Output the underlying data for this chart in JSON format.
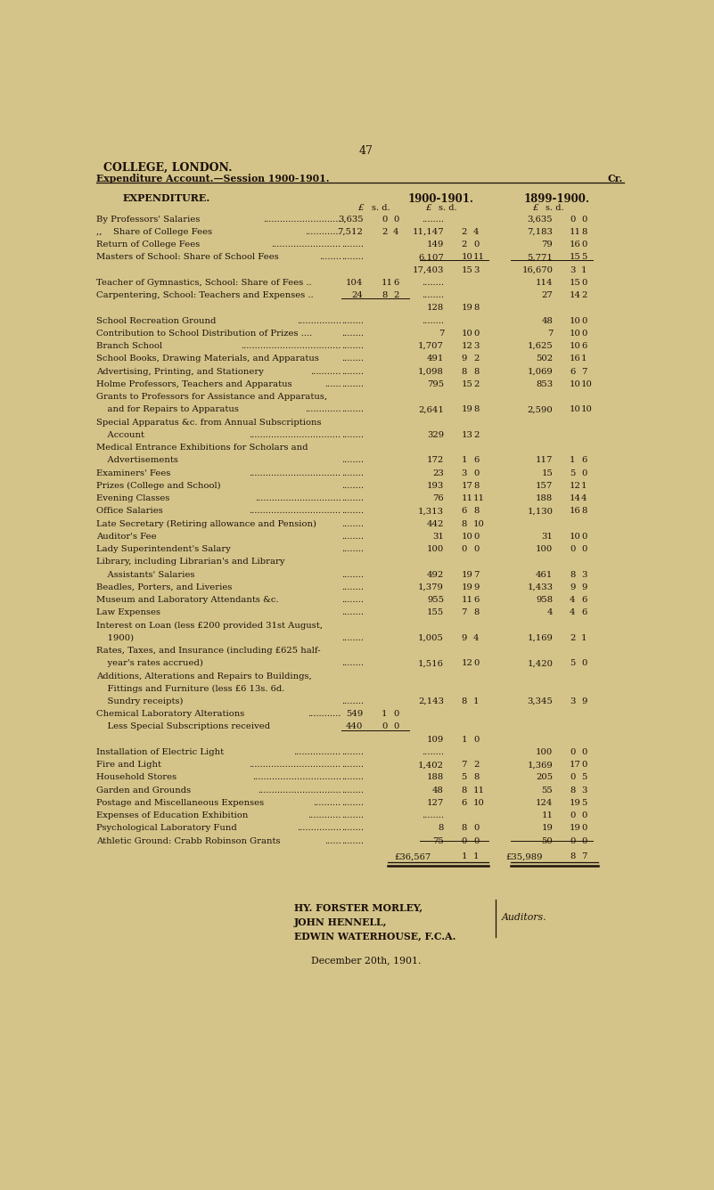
{
  "bg_color": "#d4c48a",
  "page_number": "47",
  "header1": "COLLEGE, LONDON.",
  "header2": "Expenditure Account.—Session 1900-1901.",
  "header2_right": "Cr.",
  "col_header": "EXPENDITURE.",
  "col_year1": "1900-1901.",
  "col_year2": "1899-1900.",
  "rows": [
    {
      "label": "By Professors' Salaries",
      "ldots": "............................",
      "sub1": "3,635  0  0",
      "sub2": "........",
      "main2": "3,635  0  0"
    },
    {
      "label": ",,    Share of College Fees",
      "ldots": ".............",
      "sub1": "7,512  2  4",
      "sub2": "11,147  2  4",
      "main2": "7,183 11  8"
    },
    {
      "label": "Return of College Fees",
      "ldots": ".........................",
      "sub1": "........",
      "sub2": "149  2  0",
      "main2": "79 16  0"
    },
    {
      "label": "Masters of School: Share of School Fees",
      "ldots": "........",
      "sub1": "........",
      "sub2": "6,107 10 11",
      "main2": "5,771 15  5"
    },
    {
      "label": "",
      "sub_total_1901": "17,403 15  3",
      "sub_total_1900": "16,670  3  1",
      "is_subtotal": true
    },
    {
      "label": "Teacher of Gymnastics, School: Share of Fees ..",
      "sub1": "104 11  6",
      "sub2": "........",
      "main2": "114 15  0"
    },
    {
      "label": "Carpentering, School: Teachers and Expenses ..",
      "sub1": "24  8  2",
      "sub2": ".........",
      "main2": "27 14  2"
    },
    {
      "label": "",
      "sub_total_1901": "128 19  8",
      "is_subtotal2": true
    },
    {
      "label": "School Recreation Ground",
      "ldots": "................",
      "sub1": "........",
      "sub2": ".........",
      "main2": "48 10  0"
    },
    {
      "label": "Contribution to School Distribution of Prizes ....",
      "sub1": "........",
      "sub2": "7 10  0",
      "main2": "7 10  0"
    },
    {
      "label": "Branch School",
      "ldots": "....................................",
      "sub1": "........",
      "sub2": "1,707 12  3",
      "main2": "1,625 10  6"
    },
    {
      "label": "School Books, Drawing Materials, and Apparatus",
      "sub1": "........",
      "sub2": "491  9  2",
      "main2": "502 16  1"
    },
    {
      "label": "Advertising, Printing, and Stationery",
      "ldots": "...........",
      "sub1": "........",
      "sub2": "1,098  8  8",
      "main2": "1,069  6  7"
    },
    {
      "label": "Holme Professors, Teachers and Apparatus",
      "ldots": "......",
      "sub1": "........",
      "sub2": "795 15  2",
      "main2": "853 10 10"
    },
    {
      "label": "Grants to Professors for Assistance and Apparatus,",
      "sub1": "",
      "sub2": "",
      "main2": ""
    },
    {
      "label": "    and for Repairs to Apparatus",
      "ldots": ".............",
      "sub1": "........",
      "sub2": "2,641 19  8",
      "main2": "2,590 10 10"
    },
    {
      "label": "Special Apparatus &c. from Annual Subscriptions",
      "sub1": "",
      "sub2": "",
      "main2": ""
    },
    {
      "label": "    Account",
      "ldots": ".................................",
      "sub1": "........",
      "sub2": "329 13  2",
      "main2": ""
    },
    {
      "label": "Medical Entrance Exhibitions for Scholars and",
      "sub1": "",
      "sub2": "",
      "main2": ""
    },
    {
      "label": "    Advertisements",
      "sub1": "........",
      "sub2": "172  1  6",
      "main2": "117  1  6"
    },
    {
      "label": "Examiners' Fees",
      "ldots": ".................................",
      "sub1": "........",
      "sub2": "23  3  0",
      "main2": "15  5  0"
    },
    {
      "label": "Prizes (College and School)",
      "sub1": "........",
      "sub2": "193 17  8",
      "main2": "157 12  1"
    },
    {
      "label": "Evening Classes",
      "ldots": "...............................",
      "sub1": "........",
      "sub2": "76 11 11",
      "main2": "188 14  4"
    },
    {
      "label": "Office Salaries",
      "ldots": ".................................",
      "sub1": "........",
      "sub2": "1,313  6  8",
      "main2": "1,130 16  8"
    },
    {
      "label": "Late Secretary (Retiring allowance and Pension)",
      "sub1": "........",
      "sub2": "442  8 10",
      "main2": ""
    },
    {
      "label": "Auditor's Fee",
      "sub1": "........",
      "sub2": "31 10  0",
      "main2": "31 10  0"
    },
    {
      "label": "Lady Superintendent's Salary",
      "sub1": "........",
      "sub2": "100  0  0",
      "main2": "100  0  0"
    },
    {
      "label": "Library, including Librarian's and Library",
      "sub1": "",
      "sub2": "",
      "main2": ""
    },
    {
      "label": "    Assistants' Salaries",
      "sub1": "........",
      "sub2": "492 19  7",
      "main2": "461  8  3"
    },
    {
      "label": "Beadles, Porters, and Liveries",
      "sub1": "........",
      "sub2": "1,379 19  9",
      "main2": "1,433  9  9"
    },
    {
      "label": "Museum and Laboratory Attendants &c.",
      "sub1": "........",
      "sub2": "955 11  6",
      "main2": "958  4  6"
    },
    {
      "label": "Law Expenses",
      "sub1": "........",
      "sub2": "155  7  8",
      "main2": "4  4  6"
    },
    {
      "label": "Interest on Loan (less £200 provided 31st August,",
      "sub1": "",
      "sub2": "",
      "main2": ""
    },
    {
      "label": "    1900)",
      "sub1": "........",
      "sub2": "1,005  9  4",
      "main2": "1,169  2  1"
    },
    {
      "label": "Rates, Taxes, and Insurance (including £625 half-",
      "sub1": "",
      "sub2": "",
      "main2": ""
    },
    {
      "label": "    year's rates accrued)",
      "sub1": "........",
      "sub2": "1,516 12  0",
      "main2": "1,420  5  0"
    },
    {
      "label": "Additions, Alterations and Repairs to Buildings,",
      "sub1": "",
      "sub2": "",
      "main2": ""
    },
    {
      "label": "    Fittings and Furniture (less £6 13s. 6d.",
      "sub1": "",
      "sub2": "",
      "main2": ""
    },
    {
      "label": "    Sundry receipts)",
      "ldots2": true,
      "sub1": "........",
      "sub2": "2,143  8  1",
      "main2": "3,345  3  9"
    },
    {
      "label": "Chemical Laboratory Alterations",
      "ldots": "............",
      "sub1": "549  1  0",
      "sub2": "",
      "main2": ""
    },
    {
      "label": "    Less Special Subscriptions received",
      "ldots3": true,
      "sub1": "440  0  0",
      "sub2": "",
      "main2": ""
    },
    {
      "label": "",
      "sub_total_1901": "109  1  0",
      "is_subtotal3": true
    },
    {
      "label": "Installation of Electric Light",
      "ldots": ".................",
      "sub1": "........",
      "sub2": ".........",
      "main2": "100  0  0"
    },
    {
      "label": "Fire and Light",
      "ldots": ".................................",
      "sub1": "........",
      "sub2": "1,402  7  2",
      "main2": "1,369 17  0"
    },
    {
      "label": "Household Stores",
      "ldots": "................................",
      "sub1": "........",
      "sub2": "188  5  8",
      "main2": "205  0  5"
    },
    {
      "label": "Garden and Grounds",
      "ldots": "..............................",
      "sub1": "........",
      "sub2": "48  8 11",
      "main2": "55  8  3"
    },
    {
      "label": "Postage and Miscellaneous Expenses",
      "ldots": "..........",
      "sub1": "........",
      "sub2": "127  6 10",
      "main2": "124 19  5"
    },
    {
      "label": "Expenses of Education Exhibition",
      "ldots": "............",
      "sub1": "........",
      "sub2": ".........",
      "main2": "11  0  0"
    },
    {
      "label": "Psychological Laboratory Fund",
      "ldots": "................",
      "sub1": "........",
      "sub2": "8  8  0",
      "main2": "19 19  0"
    },
    {
      "label": "Athletic Ground: Crabb Robinson Grants",
      "ldots": "......",
      "sub1": "........",
      "sub2": "75  0  0",
      "main2": "50  0  0"
    }
  ],
  "total_1901": "£36,567  1  1",
  "total_1900": "£35,989  8  7",
  "signatories": [
    "HY. FORSTER MORLEY,",
    "JOHN HENNELL,",
    "EDWIN WATERHOUSE, F.C.A."
  ],
  "sig_right": "Auditors.",
  "date": "December 20th, 1901."
}
